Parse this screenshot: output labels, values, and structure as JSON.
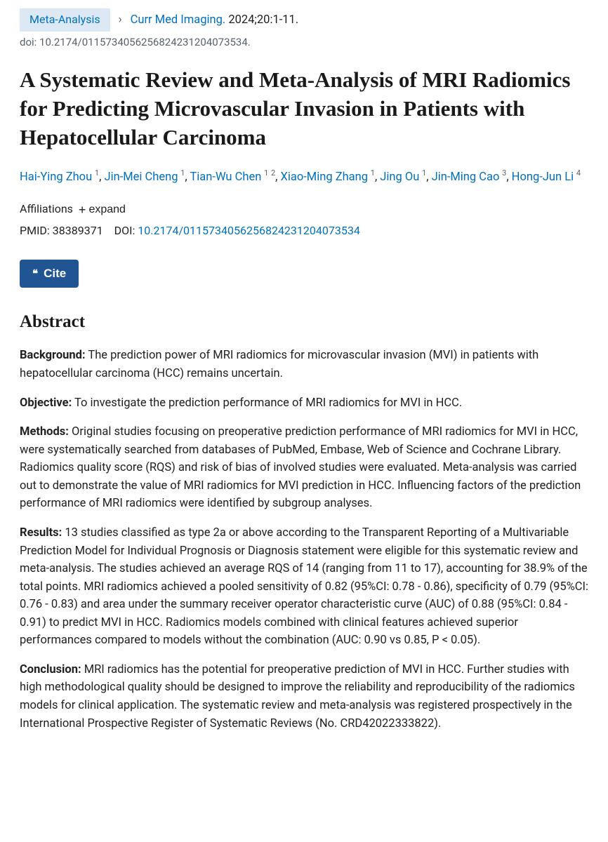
{
  "header": {
    "publication_type": "Meta-Analysis",
    "journal_abbrev": "Curr Med Imaging.",
    "citation_rest": "2024;20:1-11.",
    "doi_line": "doi: 10.2174/0115734056256824231204073534."
  },
  "title": "A Systematic Review and Meta-Analysis of MRI Radiomics for Predicting Microvascular Invasion in Patients with Hepatocellular Carcinoma",
  "authors": [
    {
      "name": "Hai-Ying Zhou",
      "affs": [
        "1"
      ]
    },
    {
      "name": "Jin-Mei Cheng",
      "affs": [
        "1"
      ]
    },
    {
      "name": "Tian-Wu Chen",
      "affs": [
        "1",
        "2"
      ]
    },
    {
      "name": "Xiao-Ming Zhang",
      "affs": [
        "1"
      ]
    },
    {
      "name": "Jing Ou",
      "affs": [
        "1"
      ]
    },
    {
      "name": "Jin-Ming Cao",
      "affs": [
        "3"
      ]
    },
    {
      "name": "Hong-Jun Li",
      "affs": [
        "4"
      ]
    }
  ],
  "affiliations": {
    "label": "Affiliations",
    "expand_label": "expand"
  },
  "identifiers": {
    "pmid_label": "PMID:",
    "pmid": "38389371",
    "doi_label": "DOI:",
    "doi": "10.2174/0115734056256824231204073534"
  },
  "cite_button": "Cite",
  "abstract": {
    "heading": "Abstract",
    "sections": [
      {
        "label": "Background:",
        "text": "The prediction power of MRI radiomics for microvascular invasion (MVI) in patients with hepatocellular carcinoma (HCC) remains uncertain."
      },
      {
        "label": "Objective:",
        "text": "To investigate the prediction performance of MRI radiomics for MVI in HCC."
      },
      {
        "label": "Methods:",
        "text": "Original studies focusing on preoperative prediction performance of MRI radiomics for MVI in HCC, were systematically searched from databases of PubMed, Embase, Web of Science and Cochrane Library. Radiomics quality score (RQS) and risk of bias of involved studies were evaluated. Meta-analysis was carried out to demonstrate the value of MRI radiomics for MVI prediction in HCC. Influencing factors of the prediction performance of MRI radiomics were identified by subgroup analyses."
      },
      {
        "label": "Results:",
        "text": "13 studies classified as type 2a or above according to the Transparent Reporting of a Multivariable Prediction Model for Individual Prognosis or Diagnosis statement were eligible for this systematic review and meta-analysis. The studies achieved an average RQS of 14 (ranging from 11 to 17), accounting for 38.9% of the total points. MRI radiomics achieved a pooled sensitivity of 0.82 (95%CI: 0.78 - 0.86), specificity of 0.79 (95%CI: 0.76 - 0.83) and area under the summary receiver operator characteristic curve (AUC) of 0.88 (95%CI: 0.84 - 0.91) to predict MVI in HCC. Radiomics models combined with clinical features achieved superior performances compared to models without the combination (AUC: 0.90 vs 0.85, P < 0.05)."
      },
      {
        "label": "Conclusion:",
        "text": "MRI radiomics has the potential for preoperative prediction of MVI in HCC. Further studies with high methodological quality should be designed to improve the reliability and reproducibility of the radiomics models for clinical application. The systematic review and meta-analysis was registered prospectively in the International Prospective Register of Systematic Reviews (No. CRD42022333822)."
      }
    ]
  }
}
